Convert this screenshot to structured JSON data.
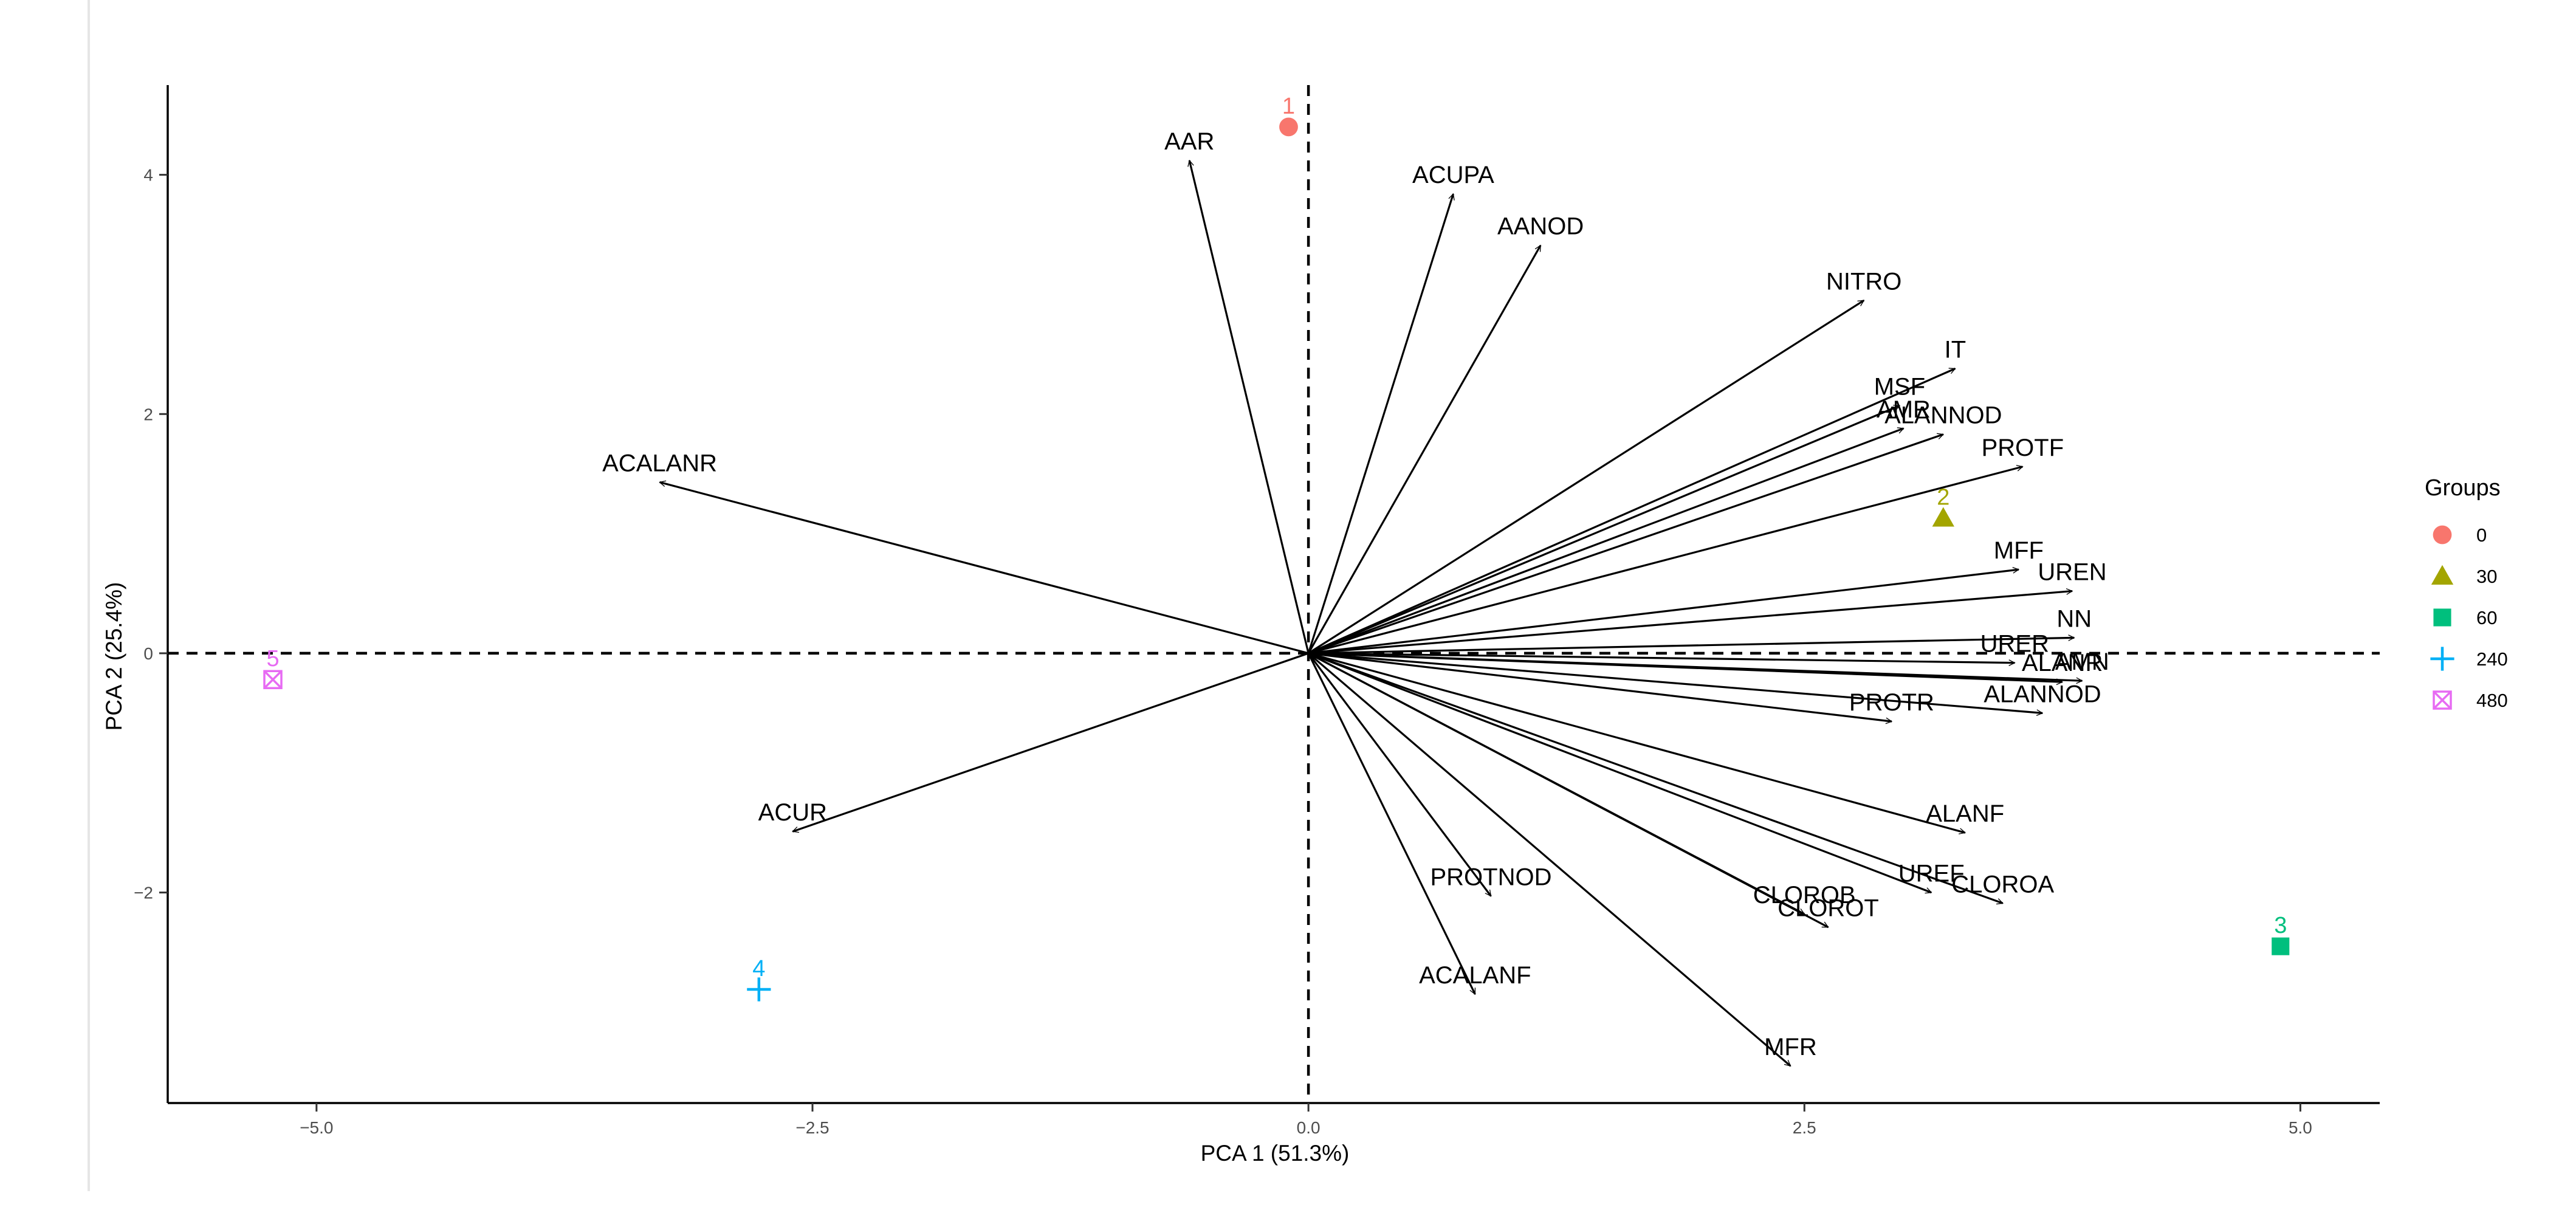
{
  "chart_data": {
    "type": "scatter",
    "subtype": "pca-biplot",
    "xlabel": "PCA 1 (51.3%)",
    "ylabel": "PCA 2 (25.4%)",
    "xlim": [
      -5.75,
      5.4
    ],
    "ylim": [
      -3.76,
      4.75
    ],
    "xticks": [
      -5.0,
      -2.5,
      0.0,
      2.5,
      5.0
    ],
    "xtick_labels": [
      "−5.0",
      "−2.5",
      "0.0",
      "2.5",
      "5.0"
    ],
    "yticks": [
      -2,
      0,
      2,
      4
    ],
    "ytick_labels": [
      "−2",
      "0",
      "2",
      "4"
    ],
    "reference_lines": {
      "x": 0,
      "y": 0,
      "style": "dashed"
    },
    "grid": false,
    "legend": {
      "title": "Groups",
      "position": "right",
      "entries": [
        {
          "label": "0",
          "color": "#F8766D",
          "shape": "circle"
        },
        {
          "label": "30",
          "color": "#A3A500",
          "shape": "triangle"
        },
        {
          "label": "60",
          "color": "#00BF7D",
          "shape": "square"
        },
        {
          "label": "240",
          "color": "#00B0F6",
          "shape": "plus"
        },
        {
          "label": "480",
          "color": "#E76BF3",
          "shape": "boxed-x"
        }
      ]
    },
    "points": [
      {
        "label": "1",
        "group": "0",
        "x": -0.1,
        "y": 4.4
      },
      {
        "label": "2",
        "group": "30",
        "x": 3.2,
        "y": 1.13
      },
      {
        "label": "3",
        "group": "60",
        "x": 4.9,
        "y": -2.45
      },
      {
        "label": "4",
        "group": "240",
        "x": -2.77,
        "y": -2.81
      },
      {
        "label": "5",
        "group": "480",
        "x": -5.22,
        "y": -0.22
      }
    ],
    "loadings": [
      {
        "name": "AAR",
        "x": -0.6,
        "y": 4.12
      },
      {
        "name": "ACUPA",
        "x": 0.73,
        "y": 3.84
      },
      {
        "name": "AANOD",
        "x": 1.17,
        "y": 3.41
      },
      {
        "name": "NITRO",
        "x": 2.8,
        "y": 2.95
      },
      {
        "name": "IT",
        "x": 3.26,
        "y": 2.38
      },
      {
        "name": "MSF",
        "x": 2.98,
        "y": 2.07
      },
      {
        "name": "AMR",
        "x": 3.0,
        "y": 1.88
      },
      {
        "name": "ALANNOD",
        "x": 3.2,
        "y": 1.83
      },
      {
        "name": "PROTF",
        "x": 3.6,
        "y": 1.56
      },
      {
        "name": "MFF",
        "x": 3.58,
        "y": 0.7
      },
      {
        "name": "UREN",
        "x": 3.85,
        "y": 0.52
      },
      {
        "name": "NN",
        "x": 3.86,
        "y": 0.13
      },
      {
        "name": "URER",
        "x": 3.56,
        "y": -0.08
      },
      {
        "name": "AMN",
        "x": 3.9,
        "y": -0.23
      },
      {
        "name": "ALANR",
        "x": 3.8,
        "y": -0.24
      },
      {
        "name": "ALANNOD",
        "x": 3.7,
        "y": -0.5
      },
      {
        "name": "PROTR",
        "x": 2.94,
        "y": -0.57
      },
      {
        "name": "ALANF",
        "x": 3.31,
        "y": -1.5
      },
      {
        "name": "UREF",
        "x": 3.14,
        "y": -2.0
      },
      {
        "name": "CLOROA",
        "x": 3.5,
        "y": -2.09
      },
      {
        "name": "CLOROB",
        "x": 2.5,
        "y": -2.18
      },
      {
        "name": "CLOROT",
        "x": 2.62,
        "y": -2.29
      },
      {
        "name": "PROTNOD",
        "x": 0.92,
        "y": -2.03
      },
      {
        "name": "ACALANF",
        "x": 0.84,
        "y": -2.85
      },
      {
        "name": "MFR",
        "x": 2.43,
        "y": -3.45
      },
      {
        "name": "ACUR",
        "x": -2.6,
        "y": -1.49
      },
      {
        "name": "ACALANR",
        "x": -3.27,
        "y": 1.43
      }
    ]
  }
}
